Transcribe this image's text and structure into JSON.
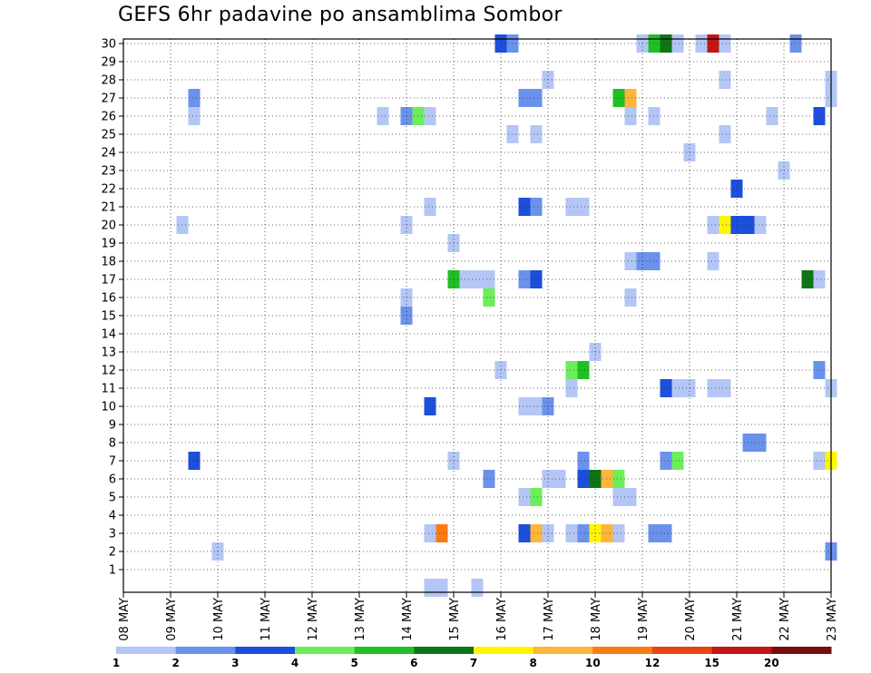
{
  "title": "GEFS 6hr padavine po ansamblima Sombor",
  "chart_data": {
    "type": "heatmap",
    "title": "GEFS 6hr padavine po ansamblima Sombor",
    "x_ticks": [
      "08 MAY",
      "09 MAY",
      "10 MAY",
      "11 MAY",
      "12 MAY",
      "13 MAY",
      "14 MAY",
      "15 MAY",
      "16 MAY",
      "17 MAY",
      "18 MAY",
      "19 MAY",
      "20 MAY",
      "21 MAY",
      "22 MAY",
      "23 MAY"
    ],
    "y_ticks": [
      "1",
      "2",
      "3",
      "4",
      "5",
      "6",
      "7",
      "8",
      "9",
      "10",
      "11",
      "12",
      "13",
      "14",
      "15",
      "16",
      "17",
      "18",
      "19",
      "20",
      "21",
      "22",
      "23",
      "24",
      "25",
      "26",
      "27",
      "28",
      "29",
      "30"
    ],
    "x_range_steps": [
      0,
      60
    ],
    "y_range": [
      0,
      30
    ],
    "grid": true,
    "colorbar": {
      "labels": [
        "1",
        "2",
        "3",
        "4",
        "5",
        "6",
        "7",
        "8",
        "10",
        "12",
        "15",
        "20"
      ],
      "colors": [
        "#b3c6f5",
        "#6a92ec",
        "#1b4fdc",
        "#6cee5a",
        "#1fc024",
        "#0e7514",
        "#fff600",
        "#fdb53b",
        "#fa7c10",
        "#e8450f",
        "#c31616",
        "#7a0c0c"
      ]
    },
    "cells": [
      {
        "step": 32,
        "member": 30,
        "value": 3
      },
      {
        "step": 33,
        "member": 30,
        "value": 2
      },
      {
        "step": 44,
        "member": 30,
        "value": 1
      },
      {
        "step": 45,
        "member": 30,
        "value": 5
      },
      {
        "step": 46,
        "member": 30,
        "value": 6
      },
      {
        "step": 47,
        "member": 30,
        "value": 1
      },
      {
        "step": 49,
        "member": 30,
        "value": 1
      },
      {
        "step": 50,
        "member": 30,
        "value": 15
      },
      {
        "step": 51,
        "member": 30,
        "value": 1
      },
      {
        "step": 57,
        "member": 30,
        "value": 2
      },
      {
        "step": 36,
        "member": 28,
        "value": 1
      },
      {
        "step": 51,
        "member": 28,
        "value": 1
      },
      {
        "step": 60,
        "member": 28,
        "value": 1
      },
      {
        "step": 6,
        "member": 27,
        "value": 2
      },
      {
        "step": 34,
        "member": 27,
        "value": 2
      },
      {
        "step": 35,
        "member": 27,
        "value": 2
      },
      {
        "step": 42,
        "member": 27,
        "value": 5
      },
      {
        "step": 43,
        "member": 27,
        "value": 8
      },
      {
        "step": 60,
        "member": 27,
        "value": 1
      },
      {
        "step": 6,
        "member": 26,
        "value": 1
      },
      {
        "step": 22,
        "member": 26,
        "value": 1
      },
      {
        "step": 24,
        "member": 26,
        "value": 2
      },
      {
        "step": 25,
        "member": 26,
        "value": 4
      },
      {
        "step": 26,
        "member": 26,
        "value": 1
      },
      {
        "step": 43,
        "member": 26,
        "value": 1
      },
      {
        "step": 45,
        "member": 26,
        "value": 1
      },
      {
        "step": 55,
        "member": 26,
        "value": 1
      },
      {
        "step": 59,
        "member": 26,
        "value": 3
      },
      {
        "step": 33,
        "member": 25,
        "value": 1
      },
      {
        "step": 35,
        "member": 25,
        "value": 1
      },
      {
        "step": 51,
        "member": 25,
        "value": 1
      },
      {
        "step": 48,
        "member": 24,
        "value": 1
      },
      {
        "step": 56,
        "member": 23,
        "value": 1
      },
      {
        "step": 52,
        "member": 22,
        "value": 3
      },
      {
        "step": 26,
        "member": 21,
        "value": 1
      },
      {
        "step": 34,
        "member": 21,
        "value": 3
      },
      {
        "step": 35,
        "member": 21,
        "value": 2
      },
      {
        "step": 38,
        "member": 21,
        "value": 1
      },
      {
        "step": 39,
        "member": 21,
        "value": 1
      },
      {
        "step": 5,
        "member": 20,
        "value": 1
      },
      {
        "step": 24,
        "member": 20,
        "value": 1
      },
      {
        "step": 50,
        "member": 20,
        "value": 1
      },
      {
        "step": 51,
        "member": 20,
        "value": 7
      },
      {
        "step": 52,
        "member": 20,
        "value": 3
      },
      {
        "step": 53,
        "member": 20,
        "value": 3
      },
      {
        "step": 54,
        "member": 20,
        "value": 1
      },
      {
        "step": 28,
        "member": 19,
        "value": 1
      },
      {
        "step": 43,
        "member": 18,
        "value": 1
      },
      {
        "step": 44,
        "member": 18,
        "value": 2
      },
      {
        "step": 45,
        "member": 18,
        "value": 2
      },
      {
        "step": 50,
        "member": 18,
        "value": 1
      },
      {
        "step": 28,
        "member": 17,
        "value": 5
      },
      {
        "step": 29,
        "member": 17,
        "value": 1
      },
      {
        "step": 30,
        "member": 17,
        "value": 1
      },
      {
        "step": 31,
        "member": 17,
        "value": 1
      },
      {
        "step": 34,
        "member": 17,
        "value": 2
      },
      {
        "step": 35,
        "member": 17,
        "value": 3
      },
      {
        "step": 58,
        "member": 17,
        "value": 6
      },
      {
        "step": 59,
        "member": 17,
        "value": 1
      },
      {
        "step": 24,
        "member": 16,
        "value": 1
      },
      {
        "step": 31,
        "member": 16,
        "value": 4
      },
      {
        "step": 43,
        "member": 16,
        "value": 1
      },
      {
        "step": 24,
        "member": 15,
        "value": 2
      },
      {
        "step": 40,
        "member": 13,
        "value": 1
      },
      {
        "step": 32,
        "member": 12,
        "value": 1
      },
      {
        "step": 38,
        "member": 12,
        "value": 4
      },
      {
        "step": 39,
        "member": 12,
        "value": 5
      },
      {
        "step": 59,
        "member": 12,
        "value": 2
      },
      {
        "step": 38,
        "member": 11,
        "value": 1
      },
      {
        "step": 46,
        "member": 11,
        "value": 3
      },
      {
        "step": 47,
        "member": 11,
        "value": 1
      },
      {
        "step": 48,
        "member": 11,
        "value": 1
      },
      {
        "step": 50,
        "member": 11,
        "value": 1
      },
      {
        "step": 51,
        "member": 11,
        "value": 1
      },
      {
        "step": 60,
        "member": 11,
        "value": 1
      },
      {
        "step": 26,
        "member": 10,
        "value": 3
      },
      {
        "step": 34,
        "member": 10,
        "value": 1
      },
      {
        "step": 35,
        "member": 10,
        "value": 1
      },
      {
        "step": 36,
        "member": 10,
        "value": 2
      },
      {
        "step": 53,
        "member": 8,
        "value": 2
      },
      {
        "step": 54,
        "member": 8,
        "value": 2
      },
      {
        "step": 6,
        "member": 7,
        "value": 3
      },
      {
        "step": 28,
        "member": 7,
        "value": 1
      },
      {
        "step": 39,
        "member": 7,
        "value": 2
      },
      {
        "step": 46,
        "member": 7,
        "value": 2
      },
      {
        "step": 47,
        "member": 7,
        "value": 4
      },
      {
        "step": 59,
        "member": 7,
        "value": 1
      },
      {
        "step": 60,
        "member": 7,
        "value": 7
      },
      {
        "step": 31,
        "member": 6,
        "value": 2
      },
      {
        "step": 36,
        "member": 6,
        "value": 1
      },
      {
        "step": 37,
        "member": 6,
        "value": 1
      },
      {
        "step": 39,
        "member": 6,
        "value": 3
      },
      {
        "step": 40,
        "member": 6,
        "value": 6
      },
      {
        "step": 41,
        "member": 6,
        "value": 8
      },
      {
        "step": 42,
        "member": 6,
        "value": 4
      },
      {
        "step": 34,
        "member": 5,
        "value": 1
      },
      {
        "step": 35,
        "member": 5,
        "value": 4
      },
      {
        "step": 42,
        "member": 5,
        "value": 1
      },
      {
        "step": 43,
        "member": 5,
        "value": 1
      },
      {
        "step": 26,
        "member": 3,
        "value": 1
      },
      {
        "step": 27,
        "member": 3,
        "value": 10
      },
      {
        "step": 34,
        "member": 3,
        "value": 3
      },
      {
        "step": 35,
        "member": 3,
        "value": 8
      },
      {
        "step": 36,
        "member": 3,
        "value": 1
      },
      {
        "step": 38,
        "member": 3,
        "value": 1
      },
      {
        "step": 39,
        "member": 3,
        "value": 2
      },
      {
        "step": 40,
        "member": 3,
        "value": 7
      },
      {
        "step": 41,
        "member": 3,
        "value": 8
      },
      {
        "step": 42,
        "member": 3,
        "value": 1
      },
      {
        "step": 45,
        "member": 3,
        "value": 2
      },
      {
        "step": 46,
        "member": 3,
        "value": 2
      },
      {
        "step": 8,
        "member": 2,
        "value": 1
      },
      {
        "step": 60,
        "member": 2,
        "value": 2
      },
      {
        "step": 26,
        "member": 0,
        "value": 1
      },
      {
        "step": 27,
        "member": 0,
        "value": 1
      },
      {
        "step": 30,
        "member": 0,
        "value": 1
      }
    ]
  }
}
